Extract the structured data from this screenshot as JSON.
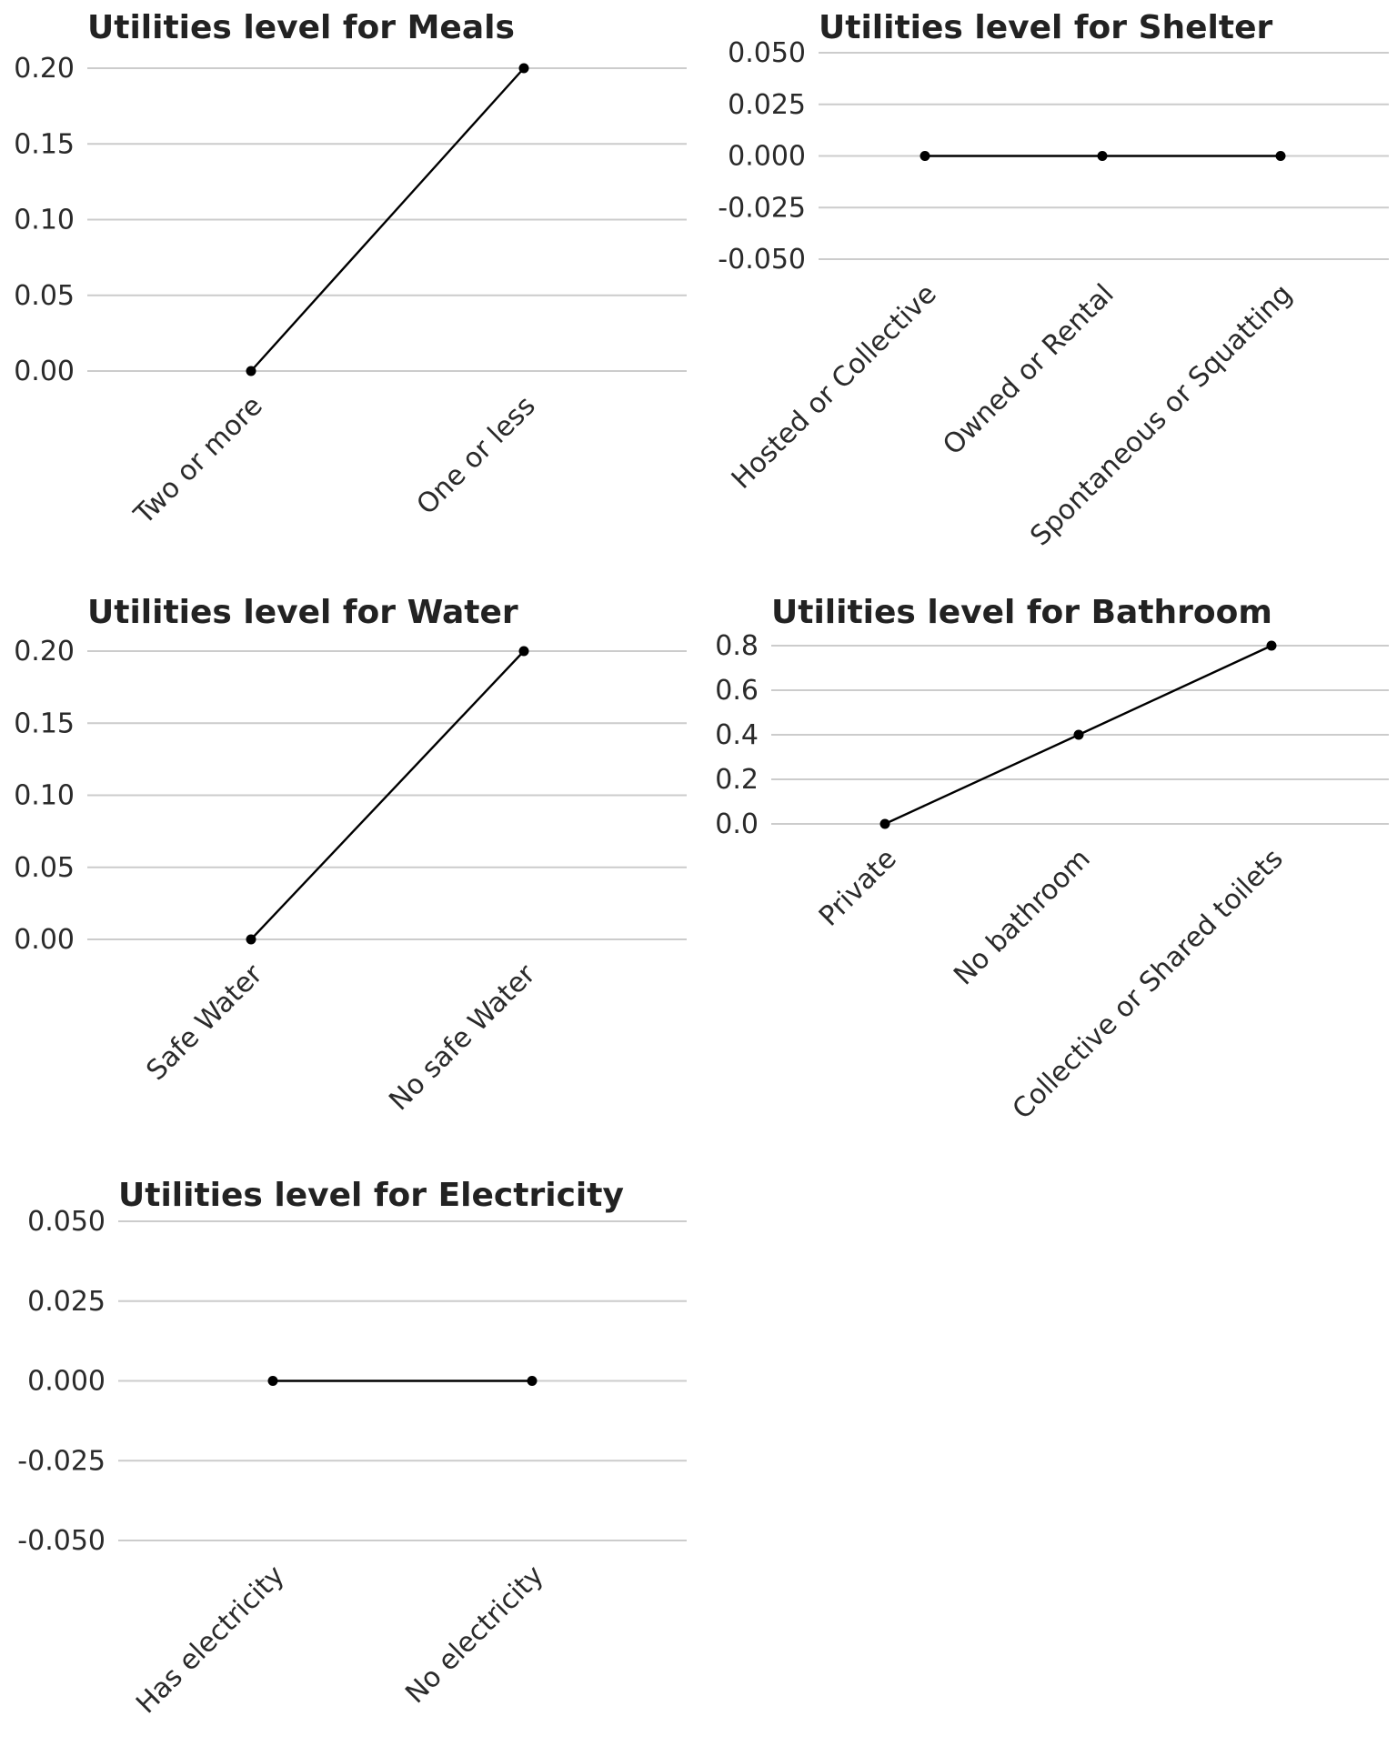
{
  "chart_data": [
    {
      "type": "line",
      "title": "Utilities level for Meals",
      "categories": [
        "Two or more",
        "One or less"
      ],
      "values": [
        0.0,
        0.2
      ],
      "yticks": [
        "0.00",
        "0.05",
        "0.10",
        "0.15",
        "0.20"
      ],
      "ylim": [
        0.0,
        0.2
      ],
      "grid": true
    },
    {
      "type": "line",
      "title": "Utilities level for Shelter",
      "categories": [
        "Hosted or Collective",
        "Owned or Rental",
        "Spontaneous or Squatting"
      ],
      "values": [
        0.0,
        0.0,
        0.0
      ],
      "yticks": [
        "-0.050",
        "-0.025",
        "0.000",
        "0.025",
        "0.050"
      ],
      "ylim": [
        -0.05,
        0.05
      ],
      "grid": true
    },
    {
      "type": "line",
      "title": "Utilities level for Water",
      "categories": [
        "Safe Water",
        "No safe Water"
      ],
      "values": [
        0.0,
        0.2
      ],
      "yticks": [
        "0.00",
        "0.05",
        "0.10",
        "0.15",
        "0.20"
      ],
      "ylim": [
        0.0,
        0.2
      ],
      "grid": true
    },
    {
      "type": "line",
      "title": "Utilities level for Bathroom",
      "categories": [
        "Private",
        "No bathroom",
        "Collective or Shared toilets"
      ],
      "values": [
        0.0,
        0.4,
        0.8
      ],
      "yticks": [
        "0.0",
        "0.2",
        "0.4",
        "0.6",
        "0.8"
      ],
      "ylim": [
        0.0,
        0.8
      ],
      "grid": true
    },
    {
      "type": "line",
      "title": "Utilities level for Electricity",
      "categories": [
        "Has electricity",
        "No electricity"
      ],
      "values": [
        0.0,
        0.0
      ],
      "yticks": [
        "-0.050",
        "-0.025",
        "0.000",
        "0.025",
        "0.050"
      ],
      "ylim": [
        -0.05,
        0.05
      ],
      "grid": true
    }
  ]
}
